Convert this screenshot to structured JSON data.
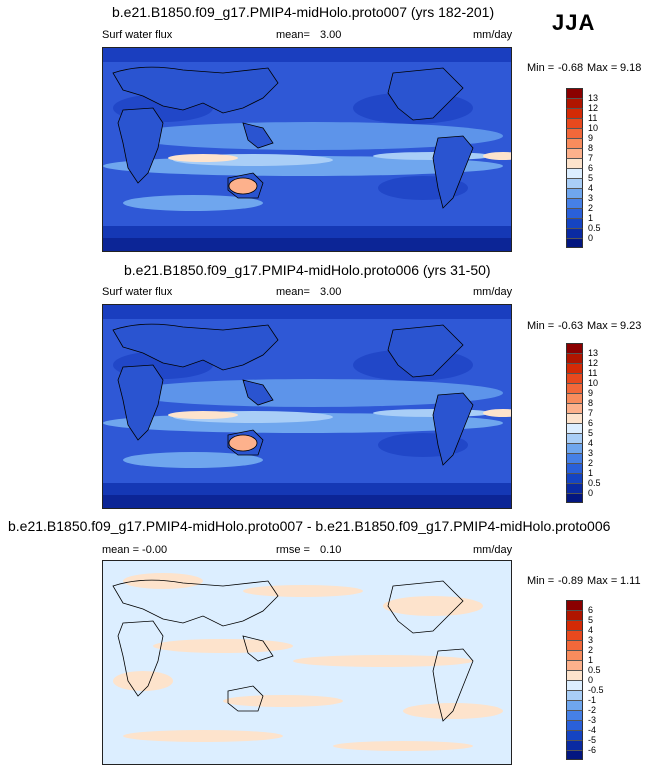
{
  "season": "JJA",
  "panels": [
    {
      "title": "b.e21.B1850.f09_g17.PMIP4-midHolo.proto007 (yrs 182-201)",
      "left_label": "Surf water flux",
      "mid_label": "mean=",
      "mid_value": "3.00",
      "units": "mm/day",
      "min_label": "Min =",
      "min_value": "-0.68",
      "max_label": "Max =",
      "max_value": "9.18",
      "colorbar": {
        "labels": [
          "13",
          "12",
          "11",
          "10",
          "9",
          "8",
          "7",
          "6",
          "5",
          "4",
          "3",
          "2",
          "1",
          "0.5",
          "0"
        ],
        "colors": [
          "#8b0000",
          "#b01500",
          "#d42a06",
          "#e8491e",
          "#f2683a",
          "#f88c5d",
          "#fdb18c",
          "#fde3cc",
          "#dceeff",
          "#a9cef7",
          "#6fa6ee",
          "#4680e6",
          "#2a60d9",
          "#1544c2",
          "#0a2aa2",
          "#031680"
        ]
      }
    },
    {
      "title": "b.e21.B1850.f09_g17.PMIP4-midHolo.proto006 (yrs 31-50)",
      "left_label": "Surf water flux",
      "mid_label": "mean=",
      "mid_value": "3.00",
      "units": "mm/day",
      "min_label": "Min =",
      "min_value": "-0.63",
      "max_label": "Max =",
      "max_value": "9.23",
      "colorbar": {
        "labels": [
          "13",
          "12",
          "11",
          "10",
          "9",
          "8",
          "7",
          "6",
          "5",
          "4",
          "3",
          "2",
          "1",
          "0.5",
          "0"
        ],
        "colors": [
          "#8b0000",
          "#b01500",
          "#d42a06",
          "#e8491e",
          "#f2683a",
          "#f88c5d",
          "#fdb18c",
          "#fde3cc",
          "#dceeff",
          "#a9cef7",
          "#6fa6ee",
          "#4680e6",
          "#2a60d9",
          "#1544c2",
          "#0a2aa2",
          "#031680"
        ]
      }
    },
    {
      "title": "b.e21.B1850.f09_g17.PMIP4-midHolo.proto007 - b.e21.B1850.f09_g17.PMIP4-midHolo.proto006",
      "left_label": "mean =  -0.00",
      "mid_label": "rmse =",
      "mid_value": "0.10",
      "units": "mm/day",
      "min_label": "Min =",
      "min_value": "-0.89",
      "max_label": "Max =",
      "max_value": "1.11",
      "colorbar": {
        "labels": [
          "6",
          "5",
          "4",
          "3",
          "2",
          "1",
          "0.5",
          "0",
          "-0.5",
          "-1",
          "-2",
          "-3",
          "-4",
          "-5",
          "-6"
        ],
        "colors": [
          "#8b0000",
          "#b01500",
          "#d42a06",
          "#e8491e",
          "#f2683a",
          "#f88c5d",
          "#fdb18c",
          "#fde3cc",
          "#dceeff",
          "#a9cef7",
          "#6fa6ee",
          "#4680e6",
          "#2a60d9",
          "#1544c2",
          "#0a2aa2",
          "#031680"
        ]
      }
    }
  ]
}
